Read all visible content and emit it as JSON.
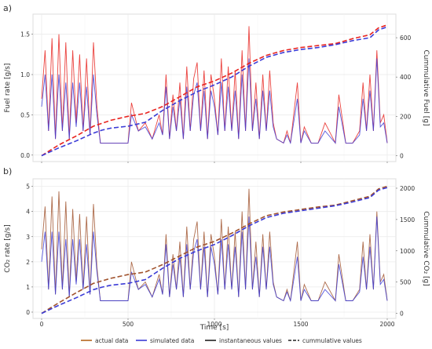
{
  "figure": {
    "x_axis_label": "Time [s]",
    "legend": [
      {
        "key": "actual",
        "label": "actual data",
        "color": "#b5651d",
        "style": "solid"
      },
      {
        "key": "simulated",
        "label": "simulated data",
        "color": "#3b3bd6",
        "style": "solid"
      },
      {
        "key": "instant",
        "label": "instantaneous values",
        "color": "#222222",
        "style": "solid"
      },
      {
        "key": "cumul",
        "label": "cummulative values",
        "color": "#222222",
        "style": "dashed"
      }
    ]
  },
  "chart_data": [
    {
      "panel_label": "a)",
      "type": "line",
      "ylabel": "Fuel rate [g/s]",
      "y2label": "Cummulative Fuel [g]",
      "xlim": [
        -50,
        2050
      ],
      "ylim": [
        -0.08,
        1.75
      ],
      "y2lim": [
        -30,
        720
      ],
      "xticks": [
        0,
        500,
        1000,
        1500,
        2000
      ],
      "yticks": [
        0.0,
        0.5,
        1.0,
        1.5
      ],
      "ytick_labels": [
        "0.0",
        "0.5",
        "1.0",
        "1.5"
      ],
      "y2ticks": [
        0,
        200,
        400,
        600
      ],
      "y2tick_labels": [
        "0",
        "200",
        "400",
        "600"
      ],
      "grid": true,
      "actual_color": "#e8231f",
      "simulated_color": "#3b3bd6",
      "spike_envelope": true,
      "cumulative_actual": {
        "x": [
          0,
          100,
          200,
          300,
          400,
          500,
          600,
          700,
          800,
          900,
          1000,
          1100,
          1200,
          1300,
          1400,
          1500,
          1600,
          1700,
          1800,
          1900,
          1950,
          2000
        ],
        "y": [
          0,
          55,
          100,
          150,
          180,
          200,
          215,
          250,
          300,
          350,
          380,
          420,
          470,
          510,
          535,
          550,
          560,
          570,
          595,
          615,
          650,
          665
        ]
      },
      "cumulative_simulated": {
        "x": [
          0,
          100,
          200,
          300,
          350,
          400,
          500,
          600,
          700,
          800,
          900,
          1000,
          1100,
          1200,
          1300,
          1400,
          1500,
          1600,
          1700,
          1800,
          1900,
          1950,
          2000
        ],
        "y": [
          0,
          40,
          75,
          115,
          130,
          140,
          150,
          170,
          230,
          280,
          325,
          360,
          400,
          455,
          500,
          525,
          540,
          550,
          565,
          585,
          600,
          640,
          655
        ]
      },
      "instant_series": [
        {
          "name": "actual data",
          "x": [
            0,
            20,
            40,
            60,
            80,
            100,
            120,
            140,
            160,
            180,
            200,
            220,
            240,
            260,
            280,
            300,
            320,
            340,
            400,
            500,
            520,
            560,
            600,
            640,
            680,
            700,
            720,
            740,
            760,
            780,
            800,
            820,
            840,
            860,
            880,
            900,
            920,
            940,
            960,
            980,
            1000,
            1020,
            1040,
            1060,
            1080,
            1100,
            1120,
            1140,
            1160,
            1180,
            1200,
            1220,
            1240,
            1260,
            1280,
            1300,
            1320,
            1340,
            1360,
            1400,
            1420,
            1440,
            1480,
            1500,
            1520,
            1560,
            1600,
            1640,
            1700,
            1720,
            1760,
            1800,
            1840,
            1860,
            1880,
            1900,
            1920,
            1940,
            1960,
            1980,
            2000
          ],
          "y": [
            0.7,
            1.3,
            0.3,
            1.45,
            0.2,
            1.5,
            0.3,
            1.4,
            0.2,
            1.3,
            0.4,
            1.25,
            0.3,
            1.2,
            0.25,
            1.4,
            0.6,
            0.15,
            0.15,
            0.15,
            0.65,
            0.3,
            0.4,
            0.2,
            0.5,
            0.25,
            1.0,
            0.2,
            0.75,
            0.3,
            0.9,
            0.2,
            1.1,
            0.3,
            0.95,
            1.15,
            0.3,
            1.05,
            0.2,
            1.0,
            0.7,
            0.25,
            1.2,
            0.3,
            1.1,
            0.3,
            1.05,
            0.2,
            1.3,
            0.3,
            1.6,
            0.3,
            0.9,
            0.2,
            1.0,
            0.3,
            1.05,
            0.4,
            0.2,
            0.15,
            0.3,
            0.15,
            0.9,
            0.15,
            0.35,
            0.15,
            0.15,
            0.4,
            0.15,
            0.75,
            0.15,
            0.15,
            0.3,
            0.9,
            0.3,
            1.0,
            0.3,
            1.3,
            0.4,
            0.5,
            0.15
          ]
        },
        {
          "name": "simulated data",
          "x": [
            0,
            20,
            40,
            60,
            80,
            100,
            120,
            140,
            160,
            180,
            200,
            220,
            240,
            260,
            280,
            300,
            320,
            340,
            400,
            500,
            520,
            560,
            600,
            640,
            680,
            700,
            720,
            740,
            760,
            780,
            800,
            820,
            840,
            860,
            880,
            900,
            920,
            940,
            960,
            980,
            1000,
            1020,
            1040,
            1060,
            1080,
            1100,
            1120,
            1140,
            1160,
            1180,
            1200,
            1220,
            1240,
            1260,
            1280,
            1300,
            1320,
            1340,
            1360,
            1400,
            1420,
            1440,
            1480,
            1500,
            1520,
            1560,
            1600,
            1640,
            1700,
            1720,
            1760,
            1800,
            1840,
            1860,
            1880,
            1900,
            1920,
            1940,
            1960,
            1980,
            2000
          ],
          "y": [
            0.6,
            1.0,
            0.3,
            1.0,
            0.2,
            1.0,
            0.3,
            0.9,
            0.2,
            0.9,
            0.35,
            0.9,
            0.3,
            0.85,
            0.25,
            1.0,
            0.5,
            0.15,
            0.15,
            0.15,
            0.5,
            0.3,
            0.35,
            0.2,
            0.4,
            0.25,
            0.85,
            0.2,
            0.6,
            0.3,
            0.7,
            0.2,
            0.85,
            0.3,
            0.75,
            0.9,
            0.3,
            0.8,
            0.2,
            0.8,
            0.6,
            0.25,
            0.9,
            0.3,
            0.85,
            0.3,
            0.8,
            0.2,
            1.0,
            0.3,
            1.2,
            0.3,
            0.7,
            0.2,
            0.8,
            0.3,
            0.8,
            0.35,
            0.2,
            0.15,
            0.25,
            0.15,
            0.7,
            0.15,
            0.3,
            0.15,
            0.15,
            0.3,
            0.15,
            0.6,
            0.15,
            0.15,
            0.25,
            0.7,
            0.3,
            0.8,
            0.3,
            1.2,
            0.35,
            0.4,
            0.15
          ]
        }
      ]
    },
    {
      "panel_label": "b)",
      "type": "line",
      "ylabel": "CO₂ rate [g/s]",
      "y2label": "Cummulative CO₂ [g]",
      "xlim": [
        -50,
        2050
      ],
      "ylim": [
        -0.25,
        5.3
      ],
      "y2lim": [
        -80,
        2150
      ],
      "xticks": [
        0,
        500,
        1000,
        1500,
        2000
      ],
      "xtick_labels": [
        "0",
        "500",
        "1000",
        "1500",
        "2000"
      ],
      "yticks": [
        0,
        1,
        2,
        3,
        4,
        5
      ],
      "ytick_labels": [
        "0",
        "1",
        "2",
        "3",
        "4",
        "5"
      ],
      "y2ticks": [
        0,
        500,
        1000,
        1500,
        2000
      ],
      "y2tick_labels": [
        "0",
        "500",
        "1000",
        "1500",
        "2000"
      ],
      "grid": true,
      "actual_color": "#a0522d",
      "simulated_color": "#3b3bd6",
      "spike_envelope": true,
      "cumulative_actual": {
        "x": [
          0,
          100,
          200,
          300,
          400,
          500,
          600,
          700,
          800,
          900,
          1000,
          1100,
          1200,
          1300,
          1400,
          1500,
          1600,
          1700,
          1800,
          1900,
          1950,
          2000
        ],
        "y": [
          0,
          170,
          330,
          480,
          560,
          620,
          660,
          780,
          920,
          1060,
          1150,
          1280,
          1430,
          1560,
          1620,
          1660,
          1700,
          1730,
          1800,
          1870,
          1990,
          2030
        ]
      },
      "cumulative_simulated": {
        "x": [
          0,
          100,
          200,
          300,
          350,
          400,
          500,
          600,
          700,
          800,
          900,
          1000,
          1100,
          1200,
          1300,
          1400,
          1500,
          1600,
          1700,
          1800,
          1900,
          1950,
          2000
        ],
        "y": [
          0,
          130,
          250,
          380,
          420,
          450,
          480,
          540,
          720,
          880,
          1000,
          1100,
          1240,
          1400,
          1530,
          1600,
          1640,
          1680,
          1720,
          1780,
          1850,
          1970,
          2010
        ]
      },
      "instant_series": [
        {
          "name": "actual data",
          "x": [
            0,
            20,
            40,
            60,
            80,
            100,
            120,
            140,
            160,
            180,
            200,
            220,
            240,
            260,
            280,
            300,
            320,
            340,
            400,
            500,
            520,
            560,
            600,
            640,
            680,
            700,
            720,
            740,
            760,
            780,
            800,
            820,
            840,
            860,
            880,
            900,
            920,
            940,
            960,
            980,
            1000,
            1020,
            1040,
            1060,
            1080,
            1100,
            1120,
            1140,
            1160,
            1180,
            1200,
            1220,
            1240,
            1260,
            1280,
            1300,
            1320,
            1340,
            1360,
            1400,
            1420,
            1440,
            1480,
            1500,
            1520,
            1560,
            1600,
            1640,
            1700,
            1720,
            1760,
            1800,
            1840,
            1860,
            1880,
            1900,
            1920,
            1940,
            1960,
            1980,
            2000
          ],
          "y": [
            2.5,
            4.2,
            0.9,
            4.6,
            0.7,
            4.8,
            0.9,
            4.4,
            0.6,
            4.1,
            1.2,
            3.9,
            0.9,
            3.8,
            0.7,
            4.3,
            1.8,
            0.45,
            0.45,
            0.45,
            2.0,
            0.9,
            1.2,
            0.6,
            1.5,
            0.7,
            3.1,
            0.6,
            2.3,
            0.9,
            2.8,
            0.6,
            3.4,
            0.9,
            2.9,
            3.6,
            0.9,
            3.2,
            0.6,
            3.1,
            2.2,
            0.7,
            3.7,
            0.9,
            3.4,
            0.9,
            3.2,
            0.6,
            4.0,
            0.9,
            4.9,
            0.9,
            2.8,
            0.6,
            3.1,
            0.9,
            3.2,
            1.2,
            0.6,
            0.45,
            0.9,
            0.45,
            2.8,
            0.45,
            1.1,
            0.45,
            0.45,
            1.2,
            0.45,
            2.3,
            0.45,
            0.45,
            0.9,
            2.8,
            0.9,
            3.1,
            0.9,
            4.0,
            1.2,
            1.5,
            0.45
          ]
        },
        {
          "name": "simulated data",
          "x": [
            0,
            20,
            40,
            60,
            80,
            100,
            120,
            140,
            160,
            180,
            200,
            220,
            240,
            260,
            280,
            300,
            320,
            340,
            400,
            500,
            520,
            560,
            600,
            640,
            680,
            700,
            720,
            740,
            760,
            780,
            800,
            820,
            840,
            860,
            880,
            900,
            920,
            940,
            960,
            980,
            1000,
            1020,
            1040,
            1060,
            1080,
            1100,
            1120,
            1140,
            1160,
            1180,
            1200,
            1220,
            1240,
            1260,
            1280,
            1300,
            1320,
            1340,
            1360,
            1400,
            1420,
            1440,
            1480,
            1500,
            1520,
            1560,
            1600,
            1640,
            1700,
            1720,
            1760,
            1800,
            1840,
            1860,
            1880,
            1900,
            1920,
            1940,
            1960,
            1980,
            2000
          ],
          "y": [
            2.0,
            3.2,
            0.9,
            3.2,
            0.7,
            3.2,
            0.9,
            2.9,
            0.6,
            2.9,
            1.1,
            2.9,
            0.9,
            2.7,
            0.7,
            3.2,
            1.6,
            0.45,
            0.45,
            0.45,
            1.6,
            0.9,
            1.1,
            0.6,
            1.3,
            0.7,
            2.7,
            0.6,
            1.9,
            0.9,
            2.2,
            0.6,
            2.7,
            0.9,
            2.4,
            2.9,
            0.9,
            2.6,
            0.6,
            2.6,
            1.9,
            0.7,
            2.9,
            0.9,
            2.7,
            0.9,
            2.6,
            0.6,
            3.2,
            0.9,
            3.8,
            0.9,
            2.2,
            0.6,
            2.6,
            0.9,
            2.6,
            1.1,
            0.6,
            0.45,
            0.8,
            0.45,
            2.2,
            0.45,
            0.9,
            0.45,
            0.45,
            0.9,
            0.45,
            1.9,
            0.45,
            0.45,
            0.8,
            2.2,
            0.9,
            2.6,
            0.9,
            3.8,
            1.1,
            1.3,
            0.45
          ]
        }
      ]
    }
  ]
}
